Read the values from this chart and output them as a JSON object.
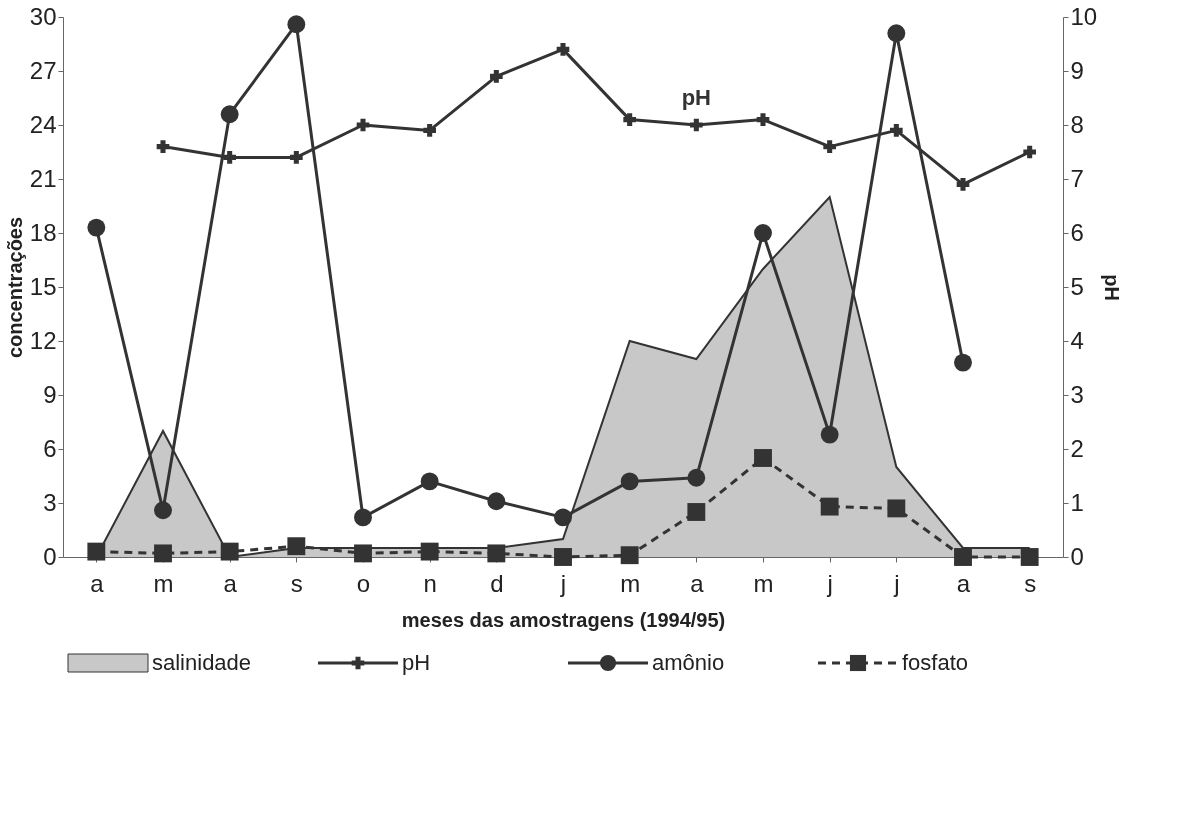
{
  "chart_data": {
    "type": "line",
    "xlabel": "meses das amostragens (1994/95)",
    "ylabel": "concentrações",
    "y2label": "pH",
    "categories": [
      "a",
      "m",
      "a",
      "s",
      "o",
      "n",
      "d",
      "j",
      "m",
      "a",
      "m",
      "j",
      "j",
      "a",
      "s"
    ],
    "series": [
      {
        "name": "salinidade",
        "type": "area",
        "color": "#c8c8c8",
        "values": [
          0,
          7,
          0,
          0.5,
          0.5,
          0.5,
          0.5,
          1,
          12,
          11,
          16,
          20,
          5,
          0.5,
          0.5
        ]
      },
      {
        "name": "pH",
        "axis": "y2",
        "marker": "cross",
        "line_style": "solid",
        "color": "#333333",
        "values": [
          null,
          7.6,
          7.4,
          7.4,
          8.0,
          7.9,
          8.9,
          9.4,
          8.1,
          8.0,
          8.1,
          7.6,
          7.9,
          6.9,
          7.5
        ]
      },
      {
        "name": "amônio",
        "marker": "circle",
        "line_style": "solid",
        "color": "#333333",
        "values": [
          18.3,
          2.6,
          24.6,
          29.6,
          2.2,
          4.2,
          3.1,
          2.2,
          4.2,
          4.4,
          18.0,
          6.8,
          29.1,
          10.8,
          null
        ]
      },
      {
        "name": "fosfato",
        "marker": "square",
        "line_style": "dashed",
        "color": "#333333",
        "values": [
          0.3,
          0.2,
          0.3,
          0.6,
          0.2,
          0.3,
          0.2,
          0,
          0.1,
          2.5,
          5.5,
          2.8,
          2.7,
          0,
          0
        ]
      }
    ],
    "ylim": [
      0,
      30
    ],
    "yticks": [
      0,
      3,
      6,
      9,
      12,
      15,
      18,
      21,
      24,
      27,
      30
    ],
    "y2lim": [
      0,
      10
    ],
    "y2ticks": [
      0,
      1,
      2,
      3,
      4,
      5,
      6,
      7,
      8,
      9,
      10
    ],
    "grid": false,
    "legend": "bottom",
    "annotations": [
      "pH"
    ]
  }
}
